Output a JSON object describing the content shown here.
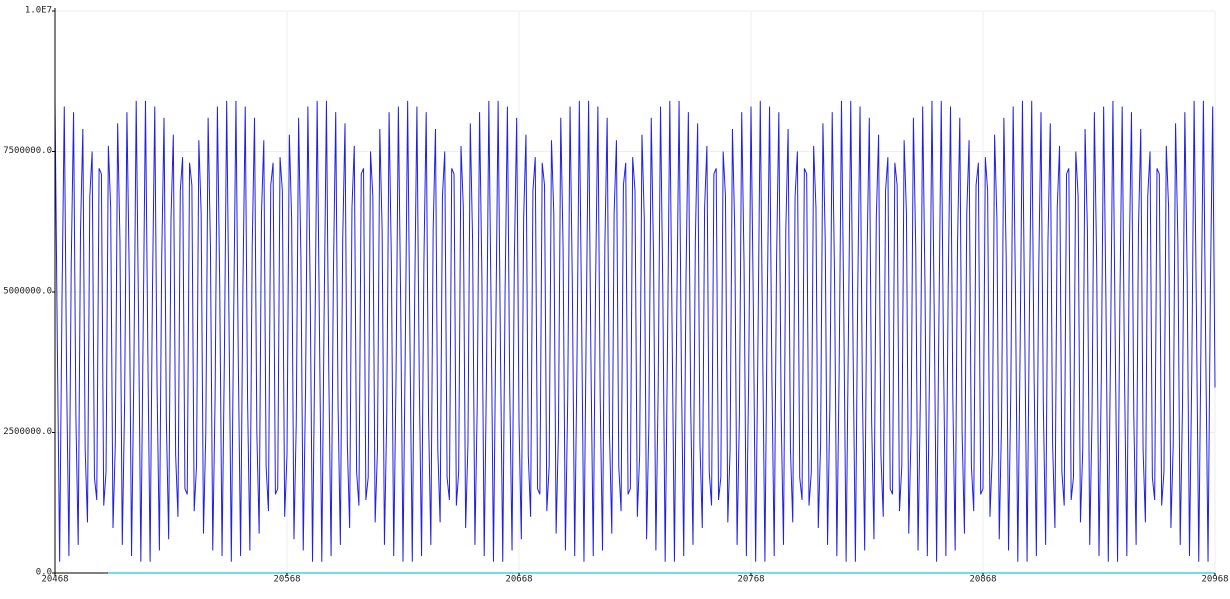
{
  "chart_data": {
    "type": "line",
    "color": "#2020e8",
    "grid": true,
    "xlim": [
      20468,
      20968
    ],
    "xticks": [
      20468,
      20568,
      20668,
      20768,
      20868,
      20968
    ],
    "ylim": [
      0,
      10000000
    ],
    "yticks": [
      {
        "value": 0,
        "label": "0.0"
      },
      {
        "value": 2500000,
        "label": "2500000.0"
      },
      {
        "value": 5000000,
        "label": "5000000.0"
      },
      {
        "value": 7500000,
        "label": "7500000.0"
      },
      {
        "value": 10000000,
        "label": "1.0E7"
      }
    ],
    "x": [
      20468,
      20469,
      20470,
      20471,
      20472,
      20473,
      20474,
      20475,
      20476,
      20477,
      20478,
      20479,
      20480,
      20481,
      20482,
      20483,
      20484,
      20485,
      20486,
      20487,
      20488,
      20489,
      20490,
      20491,
      20492,
      20493,
      20494,
      20495,
      20496,
      20497,
      20498,
      20499,
      20500,
      20501,
      20502,
      20503,
      20504,
      20505,
      20506,
      20507,
      20508,
      20509,
      20510,
      20511,
      20512,
      20513,
      20514,
      20515,
      20516,
      20517,
      20518,
      20519,
      20520,
      20521,
      20522,
      20523,
      20524,
      20525,
      20526,
      20527,
      20528,
      20529,
      20530,
      20531,
      20532,
      20533,
      20534,
      20535,
      20536,
      20537,
      20538,
      20539,
      20540,
      20541,
      20542,
      20543,
      20544,
      20545,
      20546,
      20547,
      20548,
      20549,
      20550,
      20551,
      20552,
      20553,
      20554,
      20555,
      20556,
      20557,
      20558,
      20559,
      20560,
      20561,
      20562,
      20563,
      20564,
      20565,
      20566,
      20567,
      20568,
      20569,
      20570,
      20571,
      20572,
      20573,
      20574,
      20575,
      20576,
      20577,
      20578,
      20579,
      20580,
      20581,
      20582,
      20583,
      20584,
      20585,
      20586,
      20587,
      20588,
      20589,
      20590,
      20591,
      20592,
      20593,
      20594,
      20595,
      20596,
      20597,
      20598,
      20599,
      20600,
      20601,
      20602,
      20603,
      20604,
      20605,
      20606,
      20607,
      20608,
      20609,
      20610,
      20611,
      20612,
      20613,
      20614,
      20615,
      20616,
      20617,
      20618,
      20619,
      20620,
      20621,
      20622,
      20623,
      20624,
      20625,
      20626,
      20627,
      20628,
      20629,
      20630,
      20631,
      20632,
      20633,
      20634,
      20635,
      20636,
      20637,
      20638,
      20639,
      20640,
      20641,
      20642,
      20643,
      20644,
      20645,
      20646,
      20647,
      20648,
      20649,
      20650,
      20651,
      20652,
      20653,
      20654,
      20655,
      20656,
      20657,
      20658,
      20659,
      20660,
      20661,
      20662,
      20663,
      20664,
      20665,
      20666,
      20667,
      20668,
      20669,
      20670,
      20671,
      20672,
      20673,
      20674,
      20675,
      20676,
      20677,
      20678,
      20679,
      20680,
      20681,
      20682,
      20683,
      20684,
      20685,
      20686,
      20687,
      20688,
      20689,
      20690,
      20691,
      20692,
      20693,
      20694,
      20695,
      20696,
      20697,
      20698,
      20699,
      20700,
      20701,
      20702,
      20703,
      20704,
      20705,
      20706,
      20707,
      20708,
      20709,
      20710,
      20711,
      20712,
      20713,
      20714,
      20715,
      20716,
      20717,
      20718,
      20719,
      20720,
      20721,
      20722,
      20723,
      20724,
      20725,
      20726,
      20727,
      20728,
      20729,
      20730,
      20731,
      20732,
      20733,
      20734,
      20735,
      20736,
      20737,
      20738,
      20739,
      20740,
      20741,
      20742,
      20743,
      20744,
      20745,
      20746,
      20747,
      20748,
      20749,
      20750,
      20751,
      20752,
      20753,
      20754,
      20755,
      20756,
      20757,
      20758,
      20759,
      20760,
      20761,
      20762,
      20763,
      20764,
      20765,
      20766,
      20767,
      20768,
      20769,
      20770,
      20771,
      20772,
      20773,
      20774,
      20775,
      20776,
      20777,
      20778,
      20779,
      20780,
      20781,
      20782,
      20783,
      20784,
      20785,
      20786,
      20787,
      20788,
      20789,
      20790,
      20791,
      20792,
      20793,
      20794,
      20795,
      20796,
      20797,
      20798,
      20799,
      20800,
      20801,
      20802,
      20803,
      20804,
      20805,
      20806,
      20807,
      20808,
      20809,
      20810,
      20811,
      20812,
      20813,
      20814,
      20815,
      20816,
      20817,
      20818,
      20819,
      20820,
      20821,
      20822,
      20823,
      20824,
      20825,
      20826,
      20827,
      20828,
      20829,
      20830,
      20831,
      20832,
      20833,
      20834,
      20835,
      20836,
      20837,
      20838,
      20839,
      20840,
      20841,
      20842,
      20843,
      20844,
      20845,
      20846,
      20847,
      20848,
      20849,
      20850,
      20851,
      20852,
      20853,
      20854,
      20855,
      20856,
      20857,
      20858,
      20859,
      20860,
      20861,
      20862,
      20863,
      20864,
      20865,
      20866,
      20867,
      20868,
      20869,
      20870,
      20871,
      20872,
      20873,
      20874,
      20875,
      20876,
      20877,
      20878,
      20879,
      20880,
      20881,
      20882,
      20883,
      20884,
      20885,
      20886,
      20887,
      20888,
      20889,
      20890,
      20891,
      20892,
      20893,
      20894,
      20895,
      20896,
      20897,
      20898,
      20899,
      20900,
      20901,
      20902,
      20903,
      20904,
      20905,
      20906,
      20907,
      20908,
      20909,
      20910,
      20911,
      20912,
      20913,
      20914,
      20915,
      20916,
      20917,
      20918,
      20919,
      20920,
      20921,
      20922,
      20923,
      20924,
      20925,
      20926,
      20927,
      20928,
      20929,
      20930,
      20931,
      20932,
      20933,
      20934,
      20935,
      20936,
      20937,
      20938,
      20939,
      20940,
      20941,
      20942,
      20943,
      20944,
      20945,
      20946,
      20947,
      20948,
      20949,
      20950,
      20951,
      20952,
      20953,
      20954,
      20955,
      20956,
      20957,
      20958,
      20959,
      20960,
      20961,
      20962,
      20963,
      20964,
      20965,
      20966,
      20967,
      20968
    ],
    "values": [
      8400000,
      4100000,
      200000,
      4800000,
      8300000,
      3500000,
      300000,
      5500000,
      8200000,
      2800000,
      500000,
      6100000,
      7900000,
      2200000,
      900000,
      6700000,
      7500000,
      1700000,
      1300000,
      7200000,
      7100000,
      1200000,
      1800000,
      7600000,
      6500000,
      800000,
      2300000,
      8000000,
      5900000,
      500000,
      3000000,
      8200000,
      5300000,
      300000,
      3600000,
      8400000,
      4600000,
      200000,
      4300000,
      8400000,
      4000000,
      200000,
      5000000,
      8300000,
      3300000,
      400000,
      5600000,
      8100000,
      2700000,
      600000,
      6300000,
      7800000,
      2100000,
      1000000,
      6800000,
      7400000,
      1500000,
      1400000,
      7300000,
      6900000,
      1100000,
      1900000,
      7700000,
      6400000,
      700000,
      2500000,
      8100000,
      5800000,
      400000,
      3100000,
      8300000,
      5100000,
      300000,
      3800000,
      8400000,
      4500000,
      200000,
      4500000,
      8400000,
      3800000,
      300000,
      5100000,
      8300000,
      3100000,
      400000,
      5800000,
      8100000,
      2500000,
      700000,
      6400000,
      7700000,
      1900000,
      1100000,
      6900000,
      7300000,
      1400000,
      1500000,
      7400000,
      6800000,
      1000000,
      2100000,
      7800000,
      6300000,
      600000,
      2700000,
      8100000,
      5600000,
      400000,
      3300000,
      8300000,
      5000000,
      200000,
      4000000,
      8400000,
      4300000,
      200000,
      4600000,
      8400000,
      3600000,
      300000,
      5300000,
      8200000,
      3000000,
      500000,
      5900000,
      8000000,
      2300000,
      800000,
      6500000,
      7600000,
      1800000,
      1200000,
      7100000,
      7200000,
      1300000,
      1700000,
      7500000,
      6700000,
      900000,
      2200000,
      7900000,
      6100000,
      500000,
      2800000,
      8200000,
      5500000,
      300000,
      3500000,
      8300000,
      4800000,
      200000,
      4100000,
      8400000,
      4100000,
      200000,
      4800000,
      8300000,
      3500000,
      300000,
      5500000,
      8200000,
      2800000,
      500000,
      6100000,
      7900000,
      2200000,
      900000,
      6700000,
      7500000,
      1700000,
      1300000,
      7200000,
      7100000,
      1200000,
      1800000,
      7600000,
      6500000,
      800000,
      2300000,
      8000000,
      5900000,
      500000,
      3000000,
      8200000,
      5300000,
      300000,
      3600000,
      8400000,
      4600000,
      200000,
      4300000,
      8400000,
      4000000,
      200000,
      5000000,
      8300000,
      3300000,
      400000,
      5600000,
      8100000,
      2700000,
      600000,
      6300000,
      7800000,
      2100000,
      1000000,
      6800000,
      7400000,
      1500000,
      1400000,
      7300000,
      6900000,
      1100000,
      1900000,
      7700000,
      6400000,
      700000,
      2500000,
      8100000,
      5800000,
      400000,
      3100000,
      8300000,
      5100000,
      300000,
      3800000,
      8400000,
      4500000,
      200000,
      4500000,
      8400000,
      3800000,
      300000,
      5100000,
      8300000,
      3100000,
      400000,
      5800000,
      8100000,
      2500000,
      700000,
      6400000,
      7700000,
      1900000,
      1100000,
      6900000,
      7300000,
      1400000,
      1500000,
      7400000,
      6800000,
      1000000,
      2100000,
      7800000,
      6300000,
      600000,
      2700000,
      8100000,
      5600000,
      400000,
      3300000,
      8300000,
      5000000,
      200000,
      4000000,
      8400000,
      4300000,
      200000,
      4600000,
      8400000,
      3600000,
      300000,
      5300000,
      8200000,
      3000000,
      500000,
      5900000,
      8000000,
      2300000,
      800000,
      6500000,
      7600000,
      1800000,
      1200000,
      7100000,
      7200000,
      1300000,
      1700000,
      7500000,
      6700000,
      900000,
      2200000,
      7900000,
      6100000,
      500000,
      2800000,
      8200000,
      5500000,
      300000,
      3500000,
      8300000,
      4800000,
      200000,
      4100000,
      8400000,
      4100000,
      200000,
      4800000,
      8300000,
      3500000,
      300000,
      5500000,
      8200000,
      2800000,
      500000,
      6100000,
      7900000,
      2200000,
      900000,
      6700000,
      7500000,
      1700000,
      1300000,
      7200000,
      7100000,
      1200000,
      1800000,
      7600000,
      6500000,
      800000,
      2300000,
      8000000,
      5900000,
      500000,
      3000000,
      8200000,
      5300000,
      300000,
      3600000,
      8400000,
      4600000,
      200000,
      4300000,
      8400000,
      4000000,
      200000,
      5000000,
      8300000,
      3300000,
      400000,
      5600000,
      8100000,
      2700000,
      600000,
      6300000,
      7800000,
      2100000,
      1000000,
      6800000,
      7400000,
      1500000,
      1400000,
      7300000,
      6900000,
      1100000,
      1900000,
      7700000,
      6400000,
      700000,
      2500000,
      8100000,
      5800000,
      400000,
      3100000,
      8300000,
      5100000,
      300000,
      3800000,
      8400000,
      4500000,
      200000,
      4500000,
      8400000,
      3800000,
      300000,
      5100000,
      8300000,
      3100000,
      400000,
      5800000,
      8100000,
      2500000,
      700000,
      6400000,
      7700000,
      1900000,
      1100000,
      6900000,
      7300000,
      1400000,
      1500000,
      7400000,
      6800000,
      1000000,
      2100000,
      7800000,
      6300000,
      600000,
      2700000,
      8100000,
      5600000,
      400000,
      3300000,
      8300000,
      5000000,
      200000,
      4000000,
      8400000,
      4300000,
      200000,
      4600000,
      8400000,
      3600000,
      300000,
      5300000,
      8200000,
      3000000,
      500000,
      5900000,
      8000000,
      2300000,
      800000,
      6500000,
      7600000,
      1800000,
      1200000,
      7100000,
      7200000,
      1300000,
      1700000,
      7500000,
      6700000,
      900000,
      2200000,
      7900000,
      6100000,
      500000,
      2800000,
      8200000,
      5500000,
      300000,
      3500000,
      8300000,
      4800000,
      200000,
      4100000,
      8400000,
      4100000,
      200000,
      4800000,
      8300000,
      3500000,
      300000,
      5500000,
      8200000,
      2800000,
      500000,
      6100000,
      7900000,
      2200000,
      900000,
      6700000,
      7500000,
      1700000,
      1300000,
      7200000,
      7100000,
      1200000,
      1800000,
      7600000,
      6500000,
      800000,
      2300000,
      8000000,
      5900000,
      500000,
      3000000,
      8200000,
      5300000,
      300000,
      3600000,
      8400000,
      4600000,
      200000,
      4300000,
      8400000,
      4000000,
      200000,
      5000000,
      8300000,
      3300000
    ]
  }
}
